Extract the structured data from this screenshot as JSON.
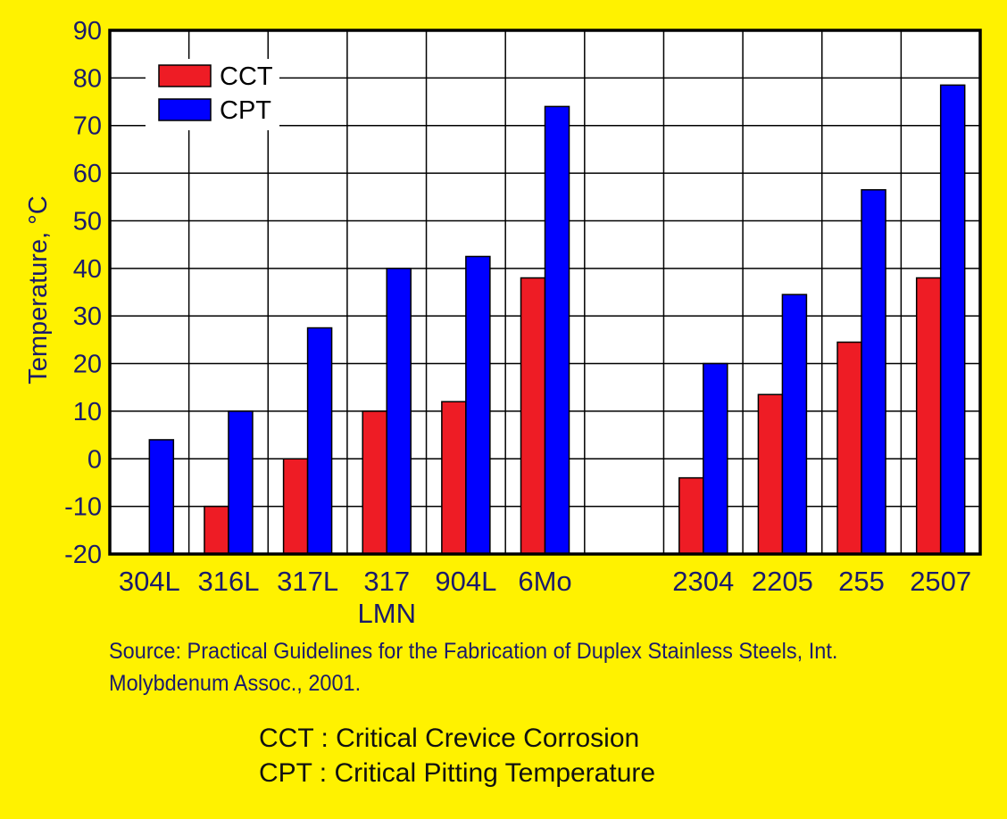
{
  "chart_data": {
    "type": "bar",
    "ylabel": "Temperature, °C",
    "ylim": [
      -20,
      90
    ],
    "yticks": [
      90,
      80,
      70,
      60,
      50,
      40,
      30,
      20,
      10,
      0,
      -10,
      -20
    ],
    "ytick_labels": [
      "90",
      "80",
      "70",
      "60",
      "50",
      "40",
      "30",
      "20",
      "10",
      "0",
      "-10",
      "-20"
    ],
    "categories": [
      "304L",
      "316L",
      "317L",
      "317 LMN",
      "904L",
      "6Mo",
      "",
      "2304",
      "2205",
      "255",
      "2507"
    ],
    "category_labels": [
      [
        "304L"
      ],
      [
        "316L"
      ],
      [
        "317L"
      ],
      [
        "317",
        "LMN"
      ],
      [
        "904L"
      ],
      [
        "6Mo"
      ],
      [],
      [
        "2304"
      ],
      [
        "2205"
      ],
      [
        "255"
      ],
      [
        "2507"
      ]
    ],
    "series": [
      {
        "name": "CCT",
        "color": "#EE1C25",
        "values": [
          null,
          -10,
          0,
          10,
          12,
          38,
          null,
          -4,
          13.5,
          24.5,
          38
        ]
      },
      {
        "name": "CPT",
        "color": "#0000FF",
        "values": [
          4,
          10,
          27.5,
          40,
          42.5,
          74,
          null,
          20,
          34.5,
          56.5,
          78.5
        ]
      }
    ],
    "grid": true,
    "legend_position": "top-left"
  },
  "source": "Source: Practical Guidelines for the Fabrication of Duplex Stainless Steels, Int. Molybdenum Assoc., 2001.",
  "definitions": [
    "CCT : Critical Crevice Corrosion",
    "CPT : Critical Pitting Temperature"
  ]
}
